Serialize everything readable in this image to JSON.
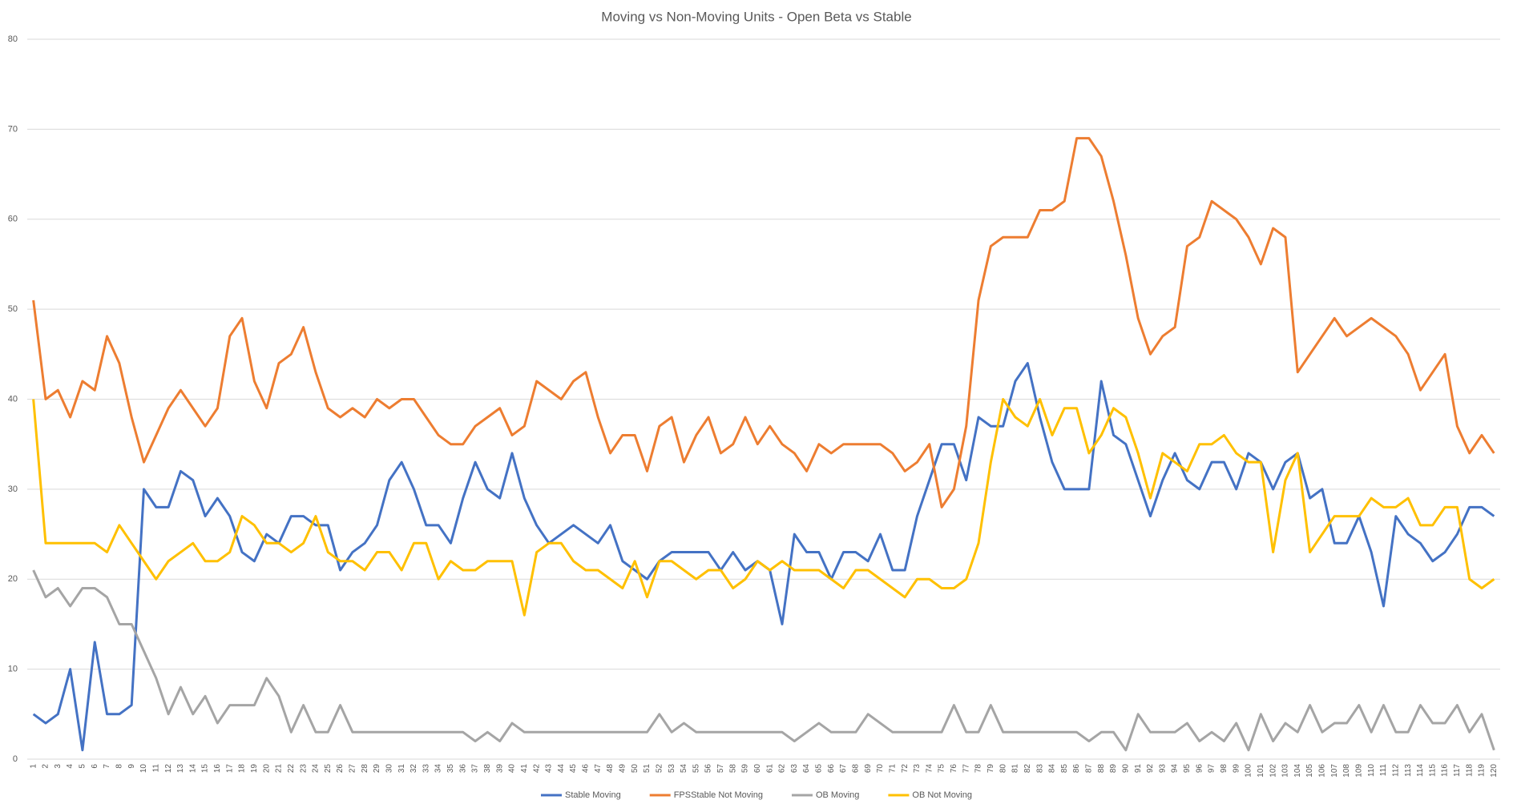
{
  "chart_data": {
    "type": "line",
    "title": "Moving vs Non-Moving Units - Open Beta vs Stable",
    "categories": [
      1,
      2,
      3,
      4,
      5,
      6,
      7,
      8,
      9,
      10,
      11,
      12,
      13,
      14,
      15,
      16,
      17,
      18,
      19,
      20,
      21,
      22,
      23,
      24,
      25,
      26,
      27,
      28,
      29,
      30,
      31,
      32,
      33,
      34,
      35,
      36,
      37,
      38,
      39,
      40,
      41,
      42,
      43,
      44,
      45,
      46,
      47,
      48,
      49,
      50,
      51,
      52,
      53,
      54,
      55,
      56,
      57,
      58,
      59,
      60,
      61,
      62,
      63,
      64,
      65,
      66,
      67,
      68,
      69,
      70,
      71,
      72,
      73,
      74,
      75,
      76,
      77,
      78,
      79,
      80,
      81,
      82,
      83,
      84,
      85,
      86,
      87,
      88,
      89,
      90,
      91,
      92,
      93,
      94,
      95,
      96,
      97,
      98,
      99,
      100,
      101,
      102,
      103,
      104,
      105,
      106,
      107,
      108,
      109,
      110,
      111,
      112,
      113,
      114,
      115,
      116,
      117,
      118,
      119,
      120
    ],
    "series": [
      {
        "name": "Stable Moving",
        "color": "#4472c4",
        "values": [
          5,
          4,
          5,
          10,
          1,
          13,
          5,
          5,
          6,
          30,
          28,
          28,
          32,
          31,
          27,
          29,
          27,
          23,
          22,
          25,
          24,
          27,
          27,
          26,
          26,
          21,
          23,
          24,
          26,
          31,
          33,
          30,
          26,
          26,
          24,
          29,
          33,
          30,
          29,
          34,
          29,
          26,
          24,
          25,
          26,
          25,
          24,
          26,
          22,
          21,
          20,
          22,
          23,
          23,
          23,
          23,
          21,
          23,
          21,
          22,
          21,
          15,
          25,
          23,
          23,
          20,
          23,
          23,
          22,
          25,
          21,
          21,
          27,
          31,
          35,
          35,
          31,
          38,
          37,
          37,
          42,
          44,
          38,
          33,
          30,
          30,
          30,
          42,
          36,
          35,
          31,
          27,
          31,
          34,
          31,
          30,
          33,
          33,
          30,
          34,
          33,
          30,
          33,
          34,
          29,
          30,
          24,
          24,
          27,
          23,
          17,
          27,
          25,
          24,
          22,
          23,
          25,
          28,
          28,
          27
        ]
      },
      {
        "name": "FPSStable Not Moving",
        "color": "#ed7d31",
        "values": [
          51,
          40,
          41,
          38,
          42,
          41,
          47,
          44,
          38,
          33,
          36,
          39,
          41,
          39,
          37,
          39,
          47,
          49,
          42,
          39,
          44,
          45,
          48,
          43,
          39,
          38,
          39,
          38,
          40,
          39,
          40,
          40,
          38,
          36,
          35,
          35,
          37,
          38,
          39,
          36,
          37,
          42,
          41,
          40,
          42,
          43,
          38,
          34,
          36,
          36,
          32,
          37,
          38,
          33,
          36,
          38,
          34,
          35,
          38,
          35,
          37,
          35,
          34,
          32,
          35,
          34,
          35,
          35,
          35,
          35,
          34,
          32,
          33,
          35,
          28,
          30,
          37,
          51,
          57,
          58,
          58,
          58,
          61,
          61,
          62,
          69,
          69,
          67,
          62,
          56,
          49,
          45,
          47,
          48,
          57,
          58,
          62,
          61,
          60,
          58,
          55,
          59,
          58,
          43,
          45,
          47,
          49,
          47,
          48,
          49,
          48,
          47,
          45,
          41,
          43,
          45,
          37,
          34,
          36,
          34
        ]
      },
      {
        "name": "OB Moving",
        "color": "#a5a5a5",
        "values": [
          21,
          18,
          19,
          17,
          19,
          19,
          18,
          15,
          15,
          12,
          9,
          5,
          8,
          5,
          7,
          4,
          6,
          6,
          6,
          9,
          7,
          3,
          6,
          3,
          3,
          6,
          3,
          3,
          3,
          3,
          3,
          3,
          3,
          3,
          3,
          3,
          2,
          3,
          2,
          4,
          3,
          3,
          3,
          3,
          3,
          3,
          3,
          3,
          3,
          3,
          3,
          5,
          3,
          4,
          3,
          3,
          3,
          3,
          3,
          3,
          3,
          3,
          2,
          3,
          4,
          3,
          3,
          3,
          5,
          4,
          3,
          3,
          3,
          3,
          3,
          6,
          3,
          3,
          6,
          3,
          3,
          3,
          3,
          3,
          3,
          3,
          2,
          3,
          3,
          1,
          5,
          3,
          3,
          3,
          4,
          2,
          3,
          2,
          4,
          1,
          5,
          2,
          4,
          3,
          6,
          3,
          4,
          4,
          6,
          3,
          6,
          3,
          3,
          6,
          4,
          4,
          6,
          3,
          5,
          1
        ]
      },
      {
        "name": "OB Not Moving",
        "color": "#ffc000",
        "values": [
          40,
          24,
          24,
          24,
          24,
          24,
          23,
          26,
          24,
          22,
          20,
          22,
          23,
          24,
          22,
          22,
          23,
          27,
          26,
          24,
          24,
          23,
          24,
          27,
          23,
          22,
          22,
          21,
          23,
          23,
          21,
          24,
          24,
          20,
          22,
          21,
          21,
          22,
          22,
          22,
          16,
          23,
          24,
          24,
          22,
          21,
          21,
          20,
          19,
          22,
          18,
          22,
          22,
          21,
          20,
          21,
          21,
          19,
          20,
          22,
          21,
          22,
          21,
          21,
          21,
          20,
          19,
          21,
          21,
          20,
          19,
          18,
          20,
          20,
          19,
          19,
          20,
          24,
          33,
          40,
          38,
          37,
          40,
          36,
          39,
          39,
          34,
          36,
          39,
          38,
          34,
          29,
          34,
          33,
          32,
          35,
          35,
          36,
          34,
          33,
          33,
          23,
          31,
          34,
          23,
          25,
          27,
          27,
          27,
          29,
          28,
          28,
          29,
          26,
          26,
          28,
          28,
          20,
          19,
          20
        ]
      }
    ],
    "ylim": [
      0,
      80
    ],
    "yticks": [
      0,
      10,
      20,
      30,
      40,
      50,
      60,
      70,
      80
    ],
    "grid": true
  }
}
